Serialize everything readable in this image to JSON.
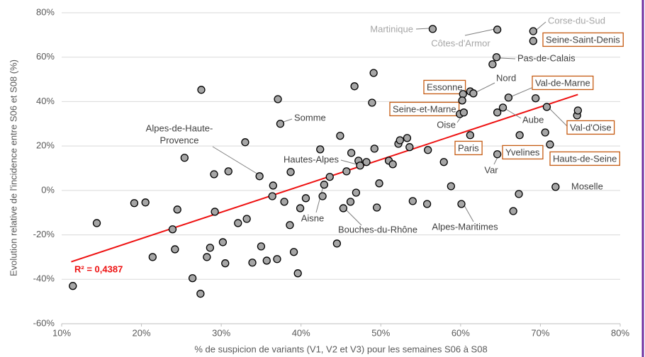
{
  "chart_data": {
    "type": "scatter",
    "xlabel": "% de suspicion de variants (V1, V2 et V3) pour les semaines S06 à S08",
    "ylabel": "Evolution relative de l'incidence entre S06 et S08 (%)",
    "xlim": [
      10,
      80
    ],
    "ylim": [
      -60,
      80
    ],
    "xticks": [
      {
        "value": 10,
        "label": "10%"
      },
      {
        "value": 20,
        "label": "20%"
      },
      {
        "value": 30,
        "label": "30%"
      },
      {
        "value": 40,
        "label": "40%"
      },
      {
        "value": 50,
        "label": "50%"
      },
      {
        "value": 60,
        "label": "60%"
      },
      {
        "value": 70,
        "label": "70%"
      },
      {
        "value": 80,
        "label": "80%"
      }
    ],
    "yticks": [
      {
        "value": -60,
        "label": "-60%"
      },
      {
        "value": -40,
        "label": "-40%"
      },
      {
        "value": -20,
        "label": "-20%"
      },
      {
        "value": 0,
        "label": "0%"
      },
      {
        "value": 20,
        "label": "20%"
      },
      {
        "value": 40,
        "label": "40%"
      },
      {
        "value": 60,
        "label": "60%"
      },
      {
        "value": 80,
        "label": "80%"
      }
    ],
    "grid": true,
    "series": [
      {
        "color": "#a6a6a6",
        "x": [
          11.4,
          14.4,
          19.1,
          20.5,
          21.4,
          23.9,
          24.5,
          24.2,
          25.4,
          26.4,
          27.4,
          27.5,
          28.2,
          28.6,
          29.1,
          29.2,
          30.2,
          30.5,
          30.9,
          32.1,
          33.2,
          33.0,
          33.9,
          34.8,
          35.0,
          35.7,
          36.4,
          36.5,
          37.0,
          37.1,
          37.4,
          37.9,
          38.6,
          38.7,
          39.1,
          39.6,
          39.9,
          40.6,
          42.4,
          42.7,
          42.9,
          43.6,
          44.5,
          44.9,
          45.3,
          45.7,
          46.2,
          46.3,
          46.7,
          46.9,
          47.2,
          47.4,
          48.2,
          49.1,
          48.9,
          49.2,
          49.5,
          49.8,
          51.0,
          51.5,
          52.2,
          52.4,
          53.3,
          53.6,
          54.0,
          55.8,
          55.9,
          56.5,
          57.9,
          58.8,
          60.1,
          59.9,
          60.4,
          60.3,
          60.2,
          61.2,
          61.6,
          61.2,
          64.0,
          64.5,
          64.6,
          64.6,
          65.3,
          66.0,
          64.6,
          67.4,
          66.6,
          67.3,
          69.1,
          69.1,
          69.4,
          70.6,
          70.8,
          71.2,
          71.9,
          74.6,
          74.7
        ],
        "y": [
          -43,
          -14.7,
          -5.7,
          -5.4,
          -30,
          -17.5,
          -8.6,
          -26.5,
          14.7,
          -39.5,
          -46.5,
          45.3,
          -30,
          -25.8,
          7.3,
          -9.6,
          -23.3,
          -32.8,
          8.6,
          -14.7,
          -12.8,
          21.7,
          -32.5,
          6.4,
          -25.2,
          -31.6,
          -2.6,
          2.2,
          -30.9,
          41.1,
          30,
          -5.1,
          -15.6,
          8.3,
          -27.7,
          -37.3,
          -8,
          -3.5,
          18.5,
          -2.6,
          2.6,
          6.1,
          -23.9,
          24.6,
          -8,
          8.6,
          -5.1,
          16.9,
          46.9,
          -1,
          13.4,
          11.2,
          12.8,
          52.9,
          39.5,
          18.8,
          -7.7,
          3.2,
          13.4,
          11.8,
          21,
          22.6,
          23.6,
          19.5,
          -4.8,
          -6.1,
          18.2,
          72.7,
          12.8,
          1.9,
          -6.1,
          34.4,
          35.1,
          43.4,
          40.5,
          44.6,
          43.7,
          24.9,
          56.8,
          60,
          72.4,
          35.1,
          37.3,
          41.8,
          16.3,
          24.9,
          -9.3,
          -1.6,
          71.7,
          67.3,
          41.5,
          26.1,
          37.6,
          20.7,
          1.6,
          33.8,
          36
        ]
      }
    ],
    "trendline": {
      "x": [
        11.2,
        74.7
      ],
      "y": [
        -32.1,
        43.2
      ],
      "color": "#ee1111",
      "label": "R² = 0,4387"
    },
    "annotations": [
      {
        "text": "Corse-du-Sud",
        "color": "#a6a6a6"
      },
      {
        "text": "Seine-Saint-Denis",
        "boxed": true
      },
      {
        "text": "Martinique",
        "color": "#a6a6a6"
      },
      {
        "text": "Côtes-d'Armor",
        "color": "#a6a6a6"
      },
      {
        "text": "Pas-de-Calais"
      },
      {
        "text": "Nord"
      },
      {
        "text": "Val-de-Marne",
        "boxed": true
      },
      {
        "text": "Essonne",
        "boxed": true
      },
      {
        "text": "Seine-et-Marne",
        "boxed": true
      },
      {
        "text": "Oise"
      },
      {
        "text": "Aube"
      },
      {
        "text": "Somme"
      },
      {
        "text": [
          "Alpes-de-Haute-",
          "Provence"
        ]
      },
      {
        "text": "Hautes-Alpes"
      },
      {
        "text": "Paris",
        "boxed": true
      },
      {
        "text": "Yvelines",
        "boxed": true
      },
      {
        "text": "Hauts-de-Seine",
        "boxed": true
      },
      {
        "text": "Val-d'Oise",
        "boxed": true
      },
      {
        "text": "Var"
      },
      {
        "text": "Moselle"
      },
      {
        "text": "Aisne"
      },
      {
        "text": "Bouches-du-Rhône"
      },
      {
        "text": "Alpes-Maritimes"
      }
    ]
  }
}
